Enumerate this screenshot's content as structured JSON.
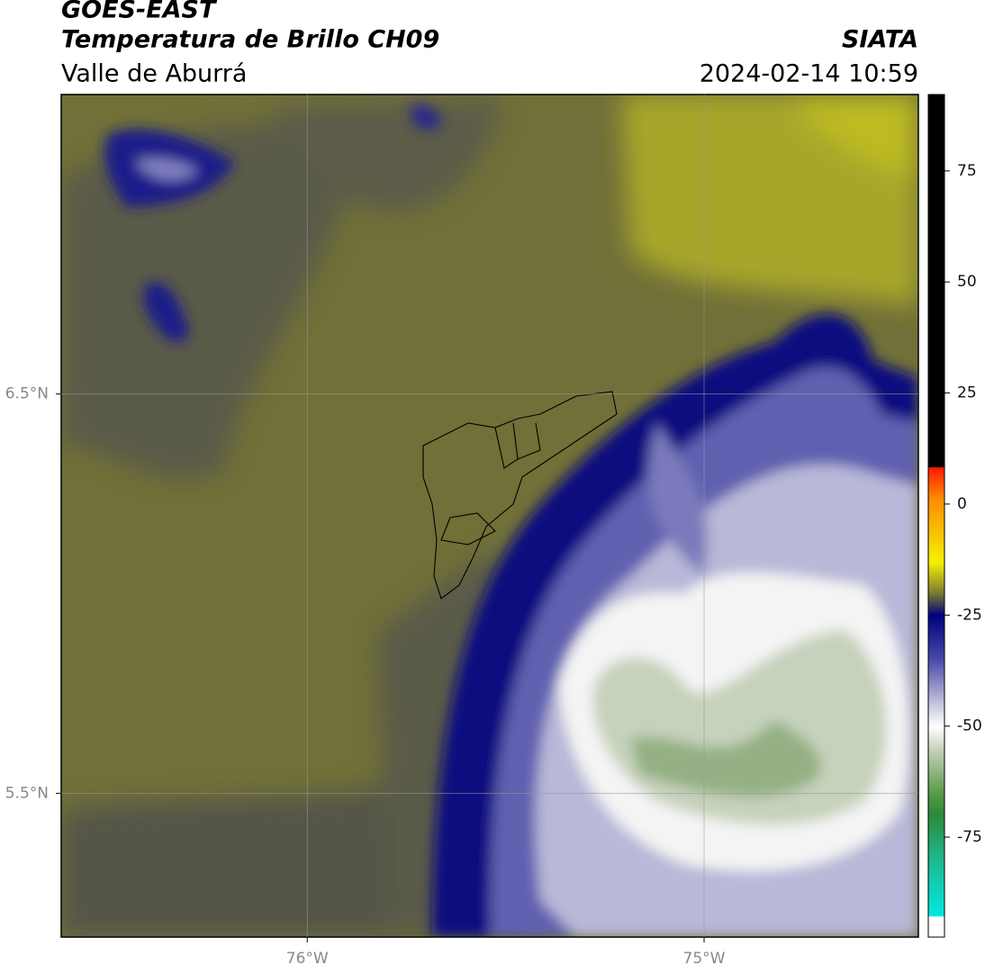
{
  "header": {
    "title": "GOES-EAST",
    "subtitle": "Temperatura de Brillo CH09",
    "region": "Valle de Aburrá",
    "source": "SIATA",
    "datetime": "2024-02-14 10:59"
  },
  "map": {
    "xlim": [
      -76.62,
      -74.46
    ],
    "ylim": [
      5.14,
      7.25
    ],
    "xticks": [
      {
        "value": -76,
        "label": "76°W"
      },
      {
        "value": -75,
        "label": "75°W"
      }
    ],
    "yticks": [
      {
        "value": 6.5,
        "label": "6.5°N"
      },
      {
        "value": 5.5,
        "label": "5.5°N"
      }
    ],
    "grid": true
  },
  "colorbar": {
    "lim": [
      -97.5,
      92.2
    ],
    "ticks": [
      75,
      50,
      25,
      0,
      -25,
      -50,
      -75
    ]
  }
}
